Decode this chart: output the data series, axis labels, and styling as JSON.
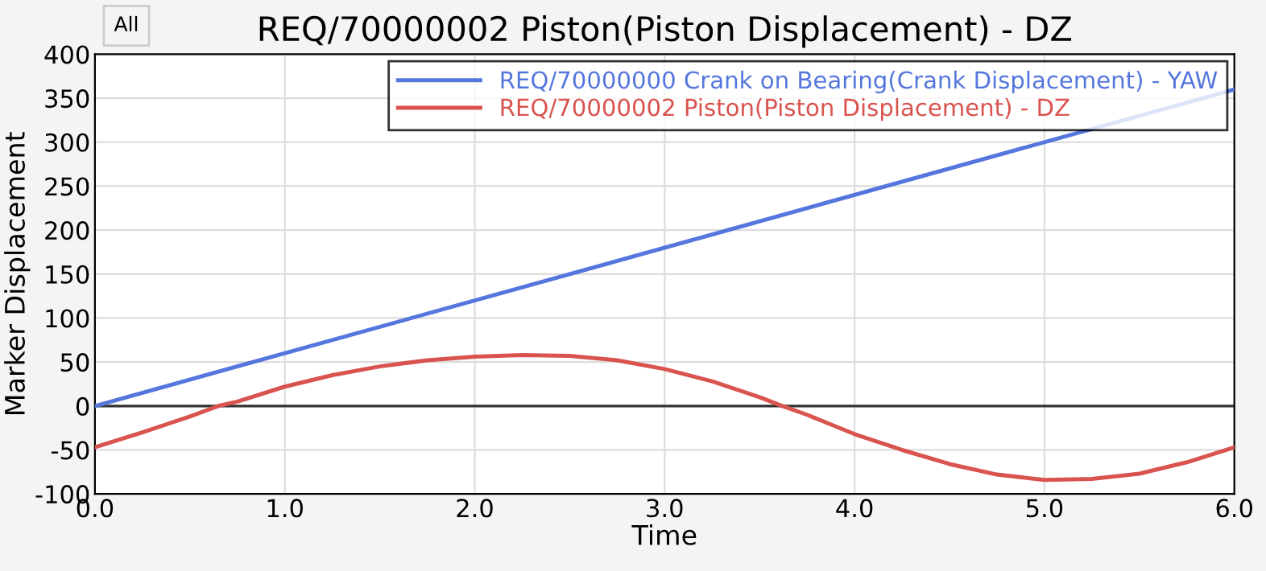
{
  "chart_data": {
    "type": "line",
    "title": "REQ/70000002 Piston(Piston Displacement) - DZ",
    "xlabel": "Time",
    "ylabel": "Marker Displacement",
    "annotations": [
      "All"
    ],
    "xlim": [
      0,
      6
    ],
    "xticks": [
      {
        "value": 0,
        "label": "0.0"
      },
      {
        "value": 1,
        "label": "1.0"
      },
      {
        "value": 2,
        "label": "2.0"
      },
      {
        "value": 3,
        "label": "3.0"
      },
      {
        "value": 4,
        "label": "4.0"
      },
      {
        "value": 5,
        "label": "5.0"
      },
      {
        "value": 6,
        "label": "6.0"
      }
    ],
    "ylim": [
      -100,
      400
    ],
    "yticks": [
      -100,
      -50,
      0,
      50,
      100,
      150,
      200,
      250,
      300,
      350,
      400
    ],
    "grid": true,
    "legend": "top right",
    "ref_lines": [
      {
        "axis": "y",
        "value": 0,
        "color": "#333333"
      }
    ],
    "series": [
      {
        "name": "REQ/70000000 Crank on Bearing(Crank Displacement) - YAW",
        "color": "#5577dd",
        "x": [
          0,
          6
        ],
        "values": [
          0,
          360
        ]
      },
      {
        "name": "REQ/70000002 Piston(Piston Displacement) - DZ",
        "color": "#d9534f",
        "x": [
          0,
          0.25,
          0.5,
          0.65,
          0.75,
          1.0,
          1.25,
          1.5,
          1.75,
          2.0,
          2.25,
          2.5,
          2.75,
          3.0,
          3.25,
          3.5,
          3.62,
          3.75,
          4.0,
          4.25,
          4.5,
          4.75,
          5.0,
          5.25,
          5.5,
          5.75,
          6.0
        ],
        "values": [
          -47,
          -30,
          -12,
          0,
          5,
          22,
          35,
          45,
          52,
          56,
          58,
          57,
          52,
          42,
          28,
          10,
          0,
          -10,
          -32,
          -50,
          -66,
          -78,
          -84,
          -83,
          -77,
          -64,
          -47
        ]
      }
    ]
  }
}
